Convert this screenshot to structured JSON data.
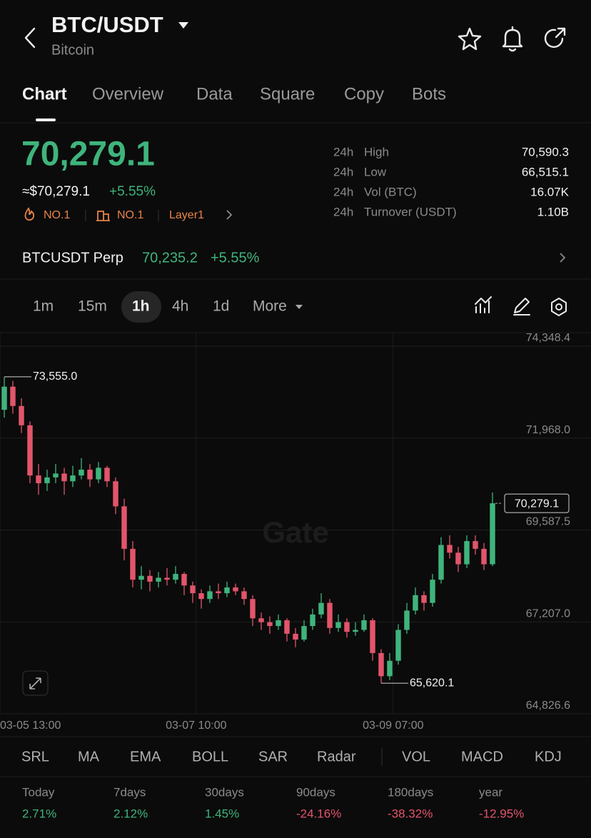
{
  "header": {
    "title": "BTC/USDT",
    "subtitle": "Bitcoin"
  },
  "tabs": [
    "Chart",
    "Overview",
    "Data",
    "Square",
    "Copy",
    "Bots"
  ],
  "price": {
    "last": "70,279.1",
    "usd": "≈$70,279.1",
    "change": "+5.55%",
    "tags": [
      "NO.1",
      "NO.1",
      "Layer1"
    ]
  },
  "stats": [
    [
      "24h",
      "High",
      "70,590.3"
    ],
    [
      "24h",
      "Low",
      "66,515.1"
    ],
    [
      "24h",
      "Vol (BTC)",
      "16.07K"
    ],
    [
      "24h",
      "Turnover (USDT)",
      "1.10B"
    ]
  ],
  "perp": {
    "name": "BTCUSDT Perp",
    "price": "70,235.2",
    "change": "+5.55%"
  },
  "intervals": [
    "1m",
    "15m",
    "1h",
    "4h",
    "1d",
    "More"
  ],
  "chart_data": {
    "type": "candlestick",
    "watermark": "Gate",
    "up_color": "#3fb47c",
    "down_color": "#e2556b",
    "grid": true,
    "ylim": [
      64826.6,
      74700
    ],
    "yticks": [
      {
        "value": 74348.4,
        "label": "74,348.4"
      },
      {
        "value": 71968.0,
        "label": "71,968.0"
      },
      {
        "value": 69587.5,
        "label": "69,587.5"
      },
      {
        "value": 67207.0,
        "label": "67,207.0"
      },
      {
        "value": 64826.6,
        "label": "64,826.6"
      }
    ],
    "xlim": [
      -0.5,
      68.5
    ],
    "xticks": [
      {
        "value": -0.5,
        "label": "03-05 13:00"
      },
      {
        "value": 22.4,
        "label": "03-07 10:00"
      },
      {
        "value": 45.4,
        "label": "03-09 07:00"
      }
    ],
    "ohlc": [
      [
        72700,
        73555,
        72500,
        73300
      ],
      [
        73300,
        73450,
        72600,
        72800
      ],
      [
        72800,
        73000,
        72100,
        72300
      ],
      [
        72300,
        72400,
        70800,
        71000
      ],
      [
        71000,
        71300,
        70500,
        70800
      ],
      [
        70800,
        71150,
        70600,
        70950
      ],
      [
        70950,
        71300,
        70800,
        71050
      ],
      [
        71050,
        71200,
        70500,
        70850
      ],
      [
        70850,
        71250,
        70700,
        71000
      ],
      [
        71000,
        71450,
        70900,
        71150
      ],
      [
        71150,
        71300,
        70700,
        70900
      ],
      [
        70900,
        71350,
        70800,
        71200
      ],
      [
        71200,
        71250,
        70700,
        70850
      ],
      [
        70850,
        70950,
        70000,
        70200
      ],
      [
        70200,
        70400,
        68800,
        69100
      ],
      [
        69100,
        69300,
        68100,
        68300
      ],
      [
        68300,
        68650,
        68050,
        68400
      ],
      [
        68400,
        68550,
        68000,
        68250
      ],
      [
        68250,
        68500,
        68100,
        68350
      ],
      [
        68350,
        68600,
        68150,
        68300
      ],
      [
        68300,
        68650,
        68200,
        68450
      ],
      [
        68450,
        68500,
        67900,
        68150
      ],
      [
        68150,
        68250,
        67700,
        67950
      ],
      [
        67950,
        68050,
        67550,
        67800
      ],
      [
        67800,
        68150,
        67700,
        68000
      ],
      [
        68000,
        68200,
        67800,
        67950
      ],
      [
        67950,
        68250,
        67850,
        68100
      ],
      [
        68100,
        68200,
        67900,
        68000
      ],
      [
        68000,
        68100,
        67650,
        67800
      ],
      [
        67800,
        67900,
        67100,
        67300
      ],
      [
        67300,
        67450,
        67000,
        67200
      ],
      [
        67200,
        67350,
        66900,
        67100
      ],
      [
        67100,
        67400,
        67000,
        67250
      ],
      [
        67250,
        67300,
        66700,
        66900
      ],
      [
        66900,
        67050,
        66550,
        66750
      ],
      [
        66750,
        67250,
        66700,
        67100
      ],
      [
        67100,
        67550,
        67000,
        67400
      ],
      [
        67400,
        67950,
        67300,
        67700
      ],
      [
        67700,
        67800,
        66900,
        67050
      ],
      [
        67050,
        67400,
        66950,
        67200
      ],
      [
        67200,
        67300,
        66800,
        66950
      ],
      [
        66950,
        67200,
        66850,
        67000
      ],
      [
        67000,
        67400,
        66950,
        67250
      ],
      [
        67250,
        67300,
        66200,
        66400
      ],
      [
        66400,
        66500,
        65620.1,
        65800
      ],
      [
        65800,
        66400,
        65700,
        66200
      ],
      [
        66200,
        67150,
        66100,
        67000
      ],
      [
        67000,
        67700,
        66900,
        67500
      ],
      [
        67500,
        68100,
        67400,
        67900
      ],
      [
        67900,
        68000,
        67500,
        67700
      ],
      [
        67700,
        68450,
        67600,
        68300
      ],
      [
        68300,
        69400,
        68200,
        69200
      ],
      [
        69200,
        69450,
        68850,
        69000
      ],
      [
        69000,
        69150,
        68500,
        68700
      ],
      [
        68700,
        69450,
        68600,
        69300
      ],
      [
        69300,
        69450,
        68950,
        69100
      ],
      [
        69100,
        69250,
        68550,
        68700
      ],
      [
        68700,
        70560,
        68650,
        70279.1
      ]
    ],
    "annotations": [
      {
        "kind": "high",
        "value": 73555,
        "label": "73,555.0"
      },
      {
        "kind": "low",
        "value": 65620.1,
        "label": "65,620.1"
      },
      {
        "kind": "last",
        "value": 70279.1,
        "label": "70,279.1"
      }
    ]
  },
  "indicators": [
    "SRL",
    "MA",
    "EMA",
    "BOLL",
    "SAR",
    "Radar",
    "VOL",
    "MACD",
    "KDJ"
  ],
  "performance": [
    {
      "period": "Today",
      "value": "2.71%"
    },
    {
      "period": "7days",
      "value": "2.12%"
    },
    {
      "period": "30days",
      "value": "1.45%"
    },
    {
      "period": "90days",
      "value": "-24.16%"
    },
    {
      "period": "180days",
      "value": "-38.32%"
    },
    {
      "period": "year",
      "value": "-12.95%"
    }
  ]
}
